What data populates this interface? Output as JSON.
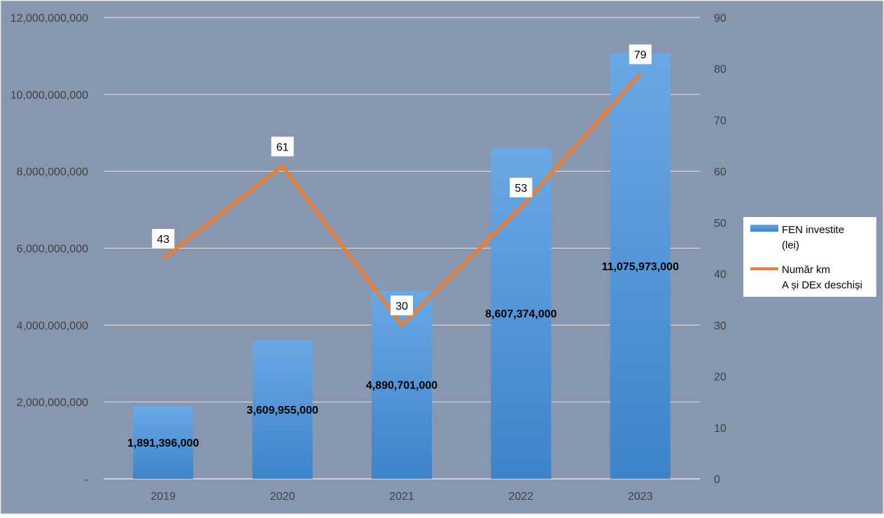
{
  "chart_data": {
    "type": "bar",
    "categories": [
      "2019",
      "2020",
      "2021",
      "2022",
      "2023"
    ],
    "series": [
      {
        "name": "FEN investite\n(lei)",
        "chart_type": "bar",
        "axis": "left",
        "values": [
          1891396000,
          3609955000,
          4890701000,
          8607374000,
          11075973000
        ],
        "labels": [
          "1,891,396,000",
          "3,609,955,000",
          "4,890,701,000",
          "8,607,374,000",
          "11,075,973,000"
        ],
        "color": "#4f94d8"
      },
      {
        "name": "Număr km\nA și DEx deschiși",
        "chart_type": "line",
        "axis": "right",
        "values": [
          43,
          61,
          30,
          53,
          79
        ],
        "labels": [
          "43",
          "61",
          "30",
          "53",
          "79"
        ],
        "color": "#ed7d31"
      }
    ],
    "y_left": {
      "lim": [
        0,
        12000000000
      ],
      "ticks": [
        0,
        2000000000,
        4000000000,
        6000000000,
        8000000000,
        10000000000,
        12000000000
      ],
      "tick_labels": [
        "-",
        "2,000,000,000",
        "4,000,000,000",
        "6,000,000,000",
        "8,000,000,000",
        "10,000,000,000",
        "12,000,000,000"
      ]
    },
    "y_right": {
      "lim": [
        0,
        90
      ],
      "ticks": [
        0,
        10,
        20,
        30,
        40,
        50,
        60,
        70,
        80,
        90
      ],
      "tick_labels": [
        "0",
        "10",
        "20",
        "30",
        "40",
        "50",
        "60",
        "70",
        "80",
        "90"
      ]
    },
    "grid": true,
    "legend_position": "right",
    "background_color": "#8797b0",
    "grid_color": "#ffffff",
    "text_color": "#404040"
  }
}
